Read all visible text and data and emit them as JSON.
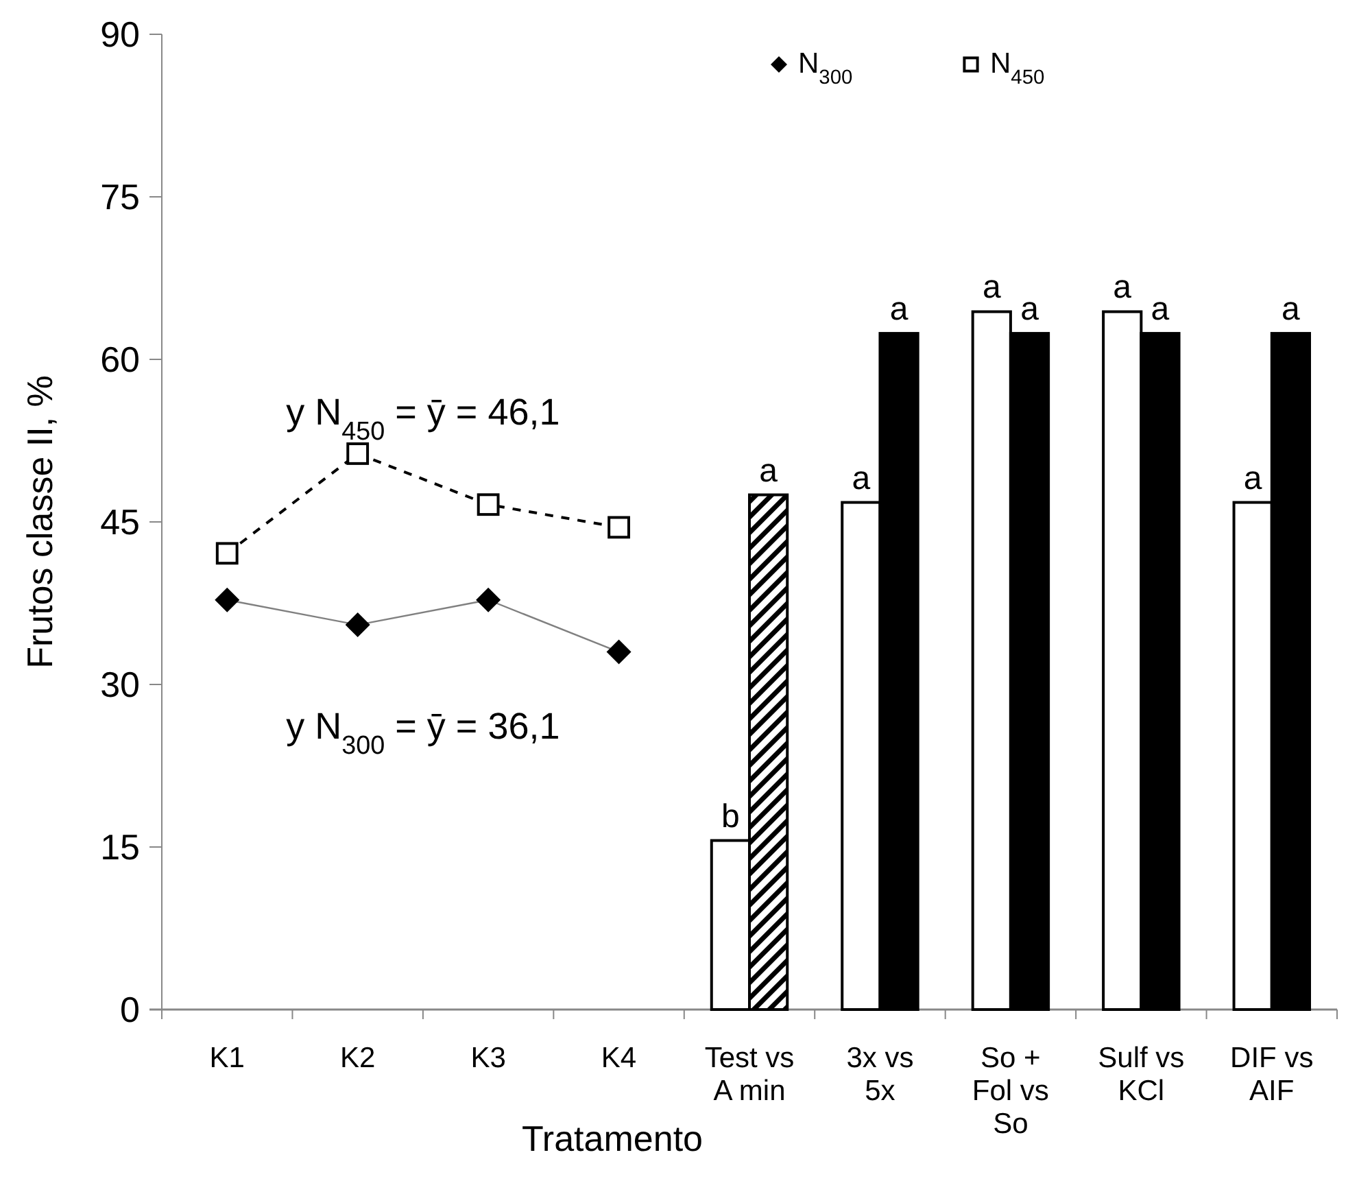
{
  "chart_data": {
    "type": "bar",
    "ylabel": "Frutos classe II, %",
    "xlabel": "Tratamento",
    "categories": [
      "K1",
      "K2",
      "K3",
      "K4",
      "Test vs A min",
      "3x vs 5x",
      "So + Fol vs So",
      "Sulf vs KCl",
      "DIF vs AIF"
    ],
    "series": [
      {
        "color": "#ffffff",
        "values": [
          null,
          null,
          null,
          null,
          15.6,
          46.8,
          64.4,
          64.4,
          46.8
        ],
        "value_labels": [
          null,
          null,
          null,
          null,
          "b",
          "a",
          "a",
          "a",
          "a"
        ]
      },
      {
        "color": "#000000",
        "values": [
          null,
          null,
          null,
          null,
          null,
          62.4,
          62.4,
          62.4,
          62.4
        ],
        "value_labels": [
          null,
          null,
          null,
          null,
          null,
          "a",
          "a",
          "a",
          "a"
        ]
      },
      {
        "color": "#000000",
        "values": [
          null,
          null,
          null,
          null,
          47.5,
          null,
          null,
          null,
          null
        ],
        "value_labels": [
          null,
          null,
          null,
          null,
          "a",
          null,
          null,
          null,
          null
        ]
      },
      {
        "type": "line",
        "name": "N$_{300}$",
        "color": "#000000",
        "marker": "diamond",
        "line_style": "solid",
        "values": [
          37.8,
          35.5,
          37.8,
          33.0,
          null,
          null,
          null,
          null,
          null
        ]
      },
      {
        "type": "line",
        "name": "N$_{450}$",
        "color": "#000000",
        "marker": "square",
        "line_style": "dashed",
        "values": [
          42.1,
          51.3,
          46.6,
          44.5,
          null,
          null,
          null,
          null,
          null
        ]
      }
    ],
    "annotations": [
      "y N$_{450}$ = ȳ = 46,1",
      "y N$_{300}$ = ȳ = 36,1"
    ],
    "ylim": [
      0,
      90
    ],
    "yticks": [
      0,
      15,
      30,
      45,
      60,
      75,
      90
    ],
    "grid": false,
    "legend": "top"
  }
}
